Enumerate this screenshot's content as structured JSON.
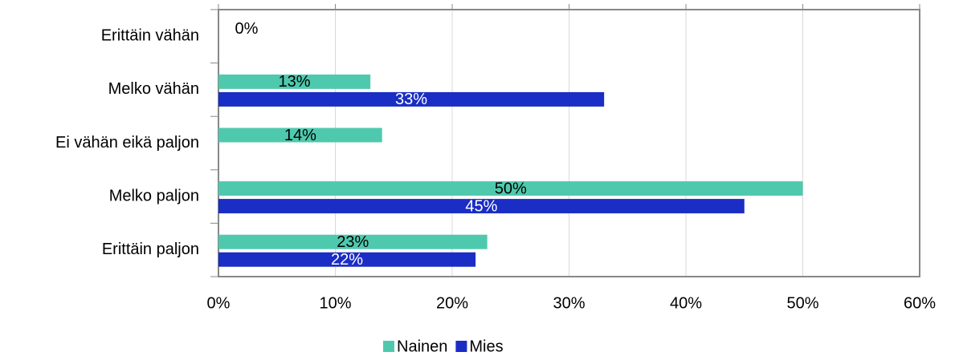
{
  "chart_data": {
    "type": "hbar",
    "categories": [
      "Erittäin vähän",
      "Melko vähän",
      "Ei vähän eikä paljon",
      "Melko paljon",
      "Erittäin paljon"
    ],
    "series": [
      {
        "name": "Nainen",
        "color": "#4fc9ad",
        "values": [
          0,
          13,
          14,
          50,
          23
        ],
        "value_labels": [
          "0%",
          "13%",
          "14%",
          "50%",
          "23%"
        ],
        "label_color": "#000000"
      },
      {
        "name": "Mies",
        "color": "#1a2dc4",
        "values": [
          null,
          33,
          null,
          45,
          22
        ],
        "value_labels": [
          null,
          "33%",
          null,
          "45%",
          "22%"
        ],
        "label_color": "#ffffff"
      }
    ],
    "xlim": [
      0,
      60
    ],
    "xticks": [
      {
        "value": 0,
        "label": "0%"
      },
      {
        "value": 10,
        "label": "10%"
      },
      {
        "value": 20,
        "label": "20%"
      },
      {
        "value": 30,
        "label": "30%"
      },
      {
        "value": 40,
        "label": "40%"
      },
      {
        "value": 50,
        "label": "50%"
      },
      {
        "value": 60,
        "label": "60%"
      }
    ],
    "grid": true,
    "legend": "bottom"
  }
}
